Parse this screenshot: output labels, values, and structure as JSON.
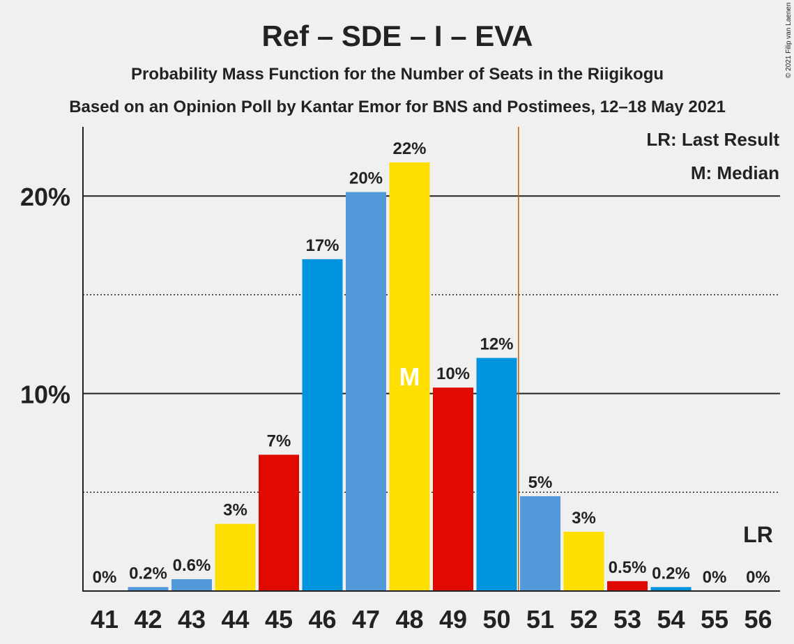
{
  "copyright": "© 2021 Filip van Laenen",
  "chart_data": {
    "type": "bar",
    "title": "Ref – SDE – I – EVA",
    "subtitle1": "Probability Mass Function for the Number of Seats in the Riigikogu",
    "subtitle2": "Based on an Opinion Poll by Kantar Emor for BNS and Postimees, 12–18 May 2021",
    "xlabel": "",
    "ylabel": "",
    "ylim": [
      0,
      23.5
    ],
    "y_ticks": [
      {
        "value": 10,
        "label": "10%"
      },
      {
        "value": 20,
        "label": "20%"
      }
    ],
    "minor_gridlines": [
      5,
      15
    ],
    "categories": [
      "41",
      "42",
      "43",
      "44",
      "45",
      "46",
      "47",
      "48",
      "49",
      "50",
      "51",
      "52",
      "53",
      "54",
      "55",
      "56"
    ],
    "values": [
      0,
      0.2,
      0.6,
      3.4,
      6.9,
      16.8,
      20.2,
      21.7,
      10.3,
      11.8,
      4.8,
      3.0,
      0.5,
      0.2,
      0,
      0
    ],
    "data_labels": [
      "0%",
      "0.2%",
      "0.6%",
      "3%",
      "7%",
      "17%",
      "20%",
      "22%",
      "10%",
      "12%",
      "5%",
      "3%",
      "0.5%",
      "0.2%",
      "0%",
      "0%"
    ],
    "bar_colors": [
      "#5199d8",
      "#5199d8",
      "#5199d8",
      "#ffdf00",
      "#e00a00",
      "#0093de",
      "#5199d8",
      "#ffdf00",
      "#e00a00",
      "#0093de",
      "#5199d8",
      "#ffdf00",
      "#e00a00",
      "#0093de",
      "#5199d8",
      "#ffdf00"
    ],
    "median_index": 7,
    "median_label": "M",
    "last_result_position": 50.5,
    "last_result_label": "LR",
    "last_result_line_color": "#c85a00",
    "legend": {
      "placement": "top-right",
      "items": [
        "LR: Last Result",
        "M: Median"
      ]
    },
    "grid": true
  }
}
